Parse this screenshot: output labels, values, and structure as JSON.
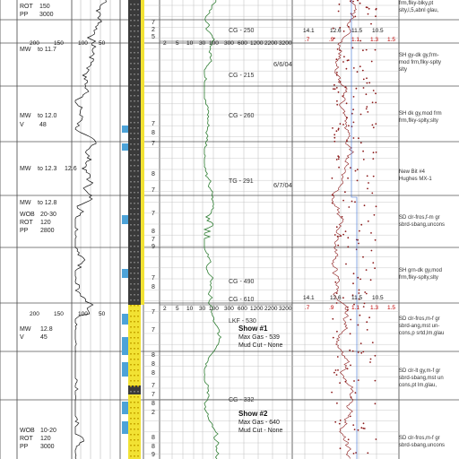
{
  "colors": {
    "gr_curve": "#111111",
    "gas_curve": "#2e7d32",
    "resistivity_curve": "#8b1a1a",
    "sandstone_fill": "#f2e233",
    "shale_fill": "#3a3a3a",
    "cuttings_blue": "#4da3d8"
  },
  "mud_blocks": [
    {
      "lines": [
        [
          "ROT",
          "150"
        ],
        [
          "PP",
          "3000"
        ]
      ]
    },
    {
      "lines": [
        [
          "MW",
          "to 11.7"
        ]
      ]
    },
    {
      "lines": [
        [
          "MW",
          "to 12.0"
        ],
        [
          "V",
          "48"
        ]
      ]
    },
    {
      "lines": [
        [
          "MW",
          "to 12.3",
          "12.6"
        ]
      ]
    },
    {
      "lines": [
        [
          "MW",
          "to 12.8"
        ]
      ]
    },
    {
      "lines": [
        [
          "WOB",
          "20-30"
        ],
        [
          "ROT",
          "120"
        ],
        [
          "PP",
          "2800"
        ]
      ]
    },
    {
      "lines": [
        [
          "MW",
          "12.8"
        ],
        [
          "V",
          "45"
        ]
      ]
    },
    {
      "lines": [
        [
          "WOB",
          "10-20"
        ],
        [
          "ROT",
          "120"
        ],
        [
          "PP",
          "3000"
        ]
      ]
    }
  ],
  "gr_scale": [
    "200",
    "150",
    "100",
    "50"
  ],
  "gas_scale": [
    "2",
    "5",
    "10",
    "30",
    "100",
    "300",
    "600",
    "1200",
    "2200",
    "3200"
  ],
  "res_scale_top": [
    "14.1",
    "12.6",
    "11.5",
    "10.5"
  ],
  "res_scale_bottom": [
    ".7",
    ".9",
    "1.1",
    "1.3",
    "1.5"
  ],
  "gas_labels": [
    "CG - 250",
    "CG - 215",
    "CG - 260",
    "TG - 291",
    "CG - 490",
    "CG - 610",
    "LKF - 530",
    "CG - 332"
  ],
  "dates": [
    "6/6/04",
    "6/7/04"
  ],
  "lith_notes": [
    [
      "frm,flky-blky,pt",
      "slty,l,5,abnl glau,"
    ],
    [
      "SH gy-dk gy,frm-",
      "mod frm,flky-splty",
      "slty"
    ],
    [
      "SH dk gy,mod frm",
      "frm,flky-splty,slty"
    ],
    [
      "New Bit #4",
      "Hughes MX-1"
    ],
    [
      "SD clr-fros,f-m gr",
      "sbrd-sbang,uncons"
    ],
    [
      "SH grn-dk gy,mod",
      "frm,flky-splty,slty"
    ],
    [
      "SD clr-fros,m-f gr",
      "sbrd-ang,mst un-",
      "cons,p srtd,lm,glau"
    ],
    [
      "SD clr-lt gy,m-f gr",
      "sbrd-sbang,mst un",
      "cons,pt lm,glau,"
    ],
    [
      "SD clr-fros,m-f gr",
      "sbrd-sbang,uncons"
    ]
  ],
  "shows": [
    {
      "title": "Show #1",
      "max_gas": "Max Gas - 539",
      "mud_cut": "Mud Cut - None"
    },
    {
      "title": "Show #2",
      "max_gas": "Max Gas - 640",
      "mud_cut": "Mud Cut - None"
    }
  ],
  "depth_digits": [
    "7",
    "2",
    "5",
    "7",
    "8",
    "7",
    "8",
    "7",
    "7",
    "8",
    "7",
    "9",
    "7",
    "8",
    "7",
    "7",
    "8",
    "8",
    "8",
    "7",
    "7",
    "8",
    "2",
    "8",
    "8",
    "9"
  ]
}
